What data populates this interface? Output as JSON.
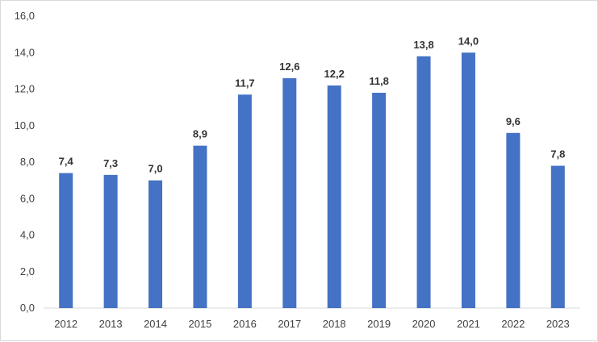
{
  "chart_data": {
    "type": "bar",
    "categories": [
      "2012",
      "2013",
      "2014",
      "2015",
      "2016",
      "2017",
      "2018",
      "2019",
      "2020",
      "2021",
      "2022",
      "2023"
    ],
    "values": [
      7.4,
      7.3,
      7.0,
      8.9,
      11.7,
      12.6,
      12.2,
      11.8,
      13.8,
      14.0,
      9.6,
      7.8
    ],
    "data_labels": [
      "7,4",
      "7,3",
      "7,0",
      "8,9",
      "11,7",
      "12,6",
      "12,2",
      "11,8",
      "13,8",
      "14,0",
      "9,6",
      "7,8"
    ],
    "y_ticks": [
      0,
      2,
      4,
      6,
      8,
      10,
      12,
      14,
      16
    ],
    "y_tick_labels": [
      "0,0",
      "2,0",
      "4,0",
      "6,0",
      "8,0",
      "10,0",
      "12,0",
      "14,0",
      "16,0"
    ],
    "ylim": [
      0,
      16
    ],
    "title": "",
    "xlabel": "",
    "ylabel": "",
    "grid": false,
    "legend": "none",
    "colors": {
      "bar": "#4472c4",
      "axis": "#d9d9d9",
      "text": "#404040"
    }
  }
}
